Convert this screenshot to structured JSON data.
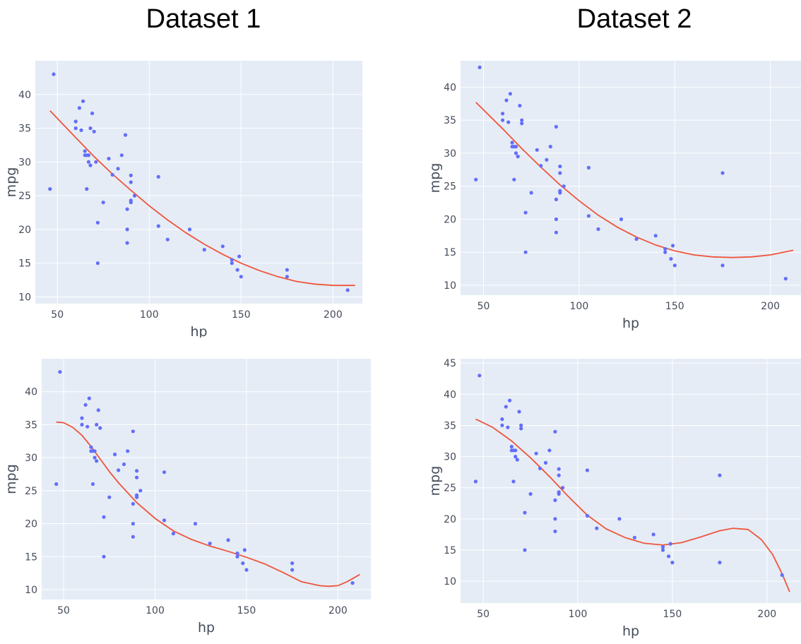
{
  "titles": [
    "Dataset 1",
    "Dataset 2"
  ],
  "colors": {
    "plot_bg": "#E5ECF6",
    "grid": "#FFFFFF",
    "points": "#636EFA",
    "fit": "#EF553B",
    "axis_text": "#444C5A"
  },
  "chart_data": [
    {
      "type": "scatter",
      "dataset": "Dataset 1",
      "xlabel": "hp",
      "ylabel": "mpg",
      "xlim": [
        38,
        216
      ],
      "ylim": [
        9,
        45
      ],
      "xticks": [
        50,
        100,
        150,
        200
      ],
      "yticks": [
        10,
        15,
        20,
        25,
        30,
        35,
        40
      ],
      "grid": true,
      "points": {
        "x": [
          46,
          48,
          60,
          60,
          62,
          63,
          64,
          65,
          65,
          66,
          66,
          67,
          67,
          68,
          68,
          69,
          70,
          71,
          72,
          72,
          75,
          78,
          80,
          83,
          85,
          87,
          88,
          88,
          88,
          90,
          90,
          90,
          90,
          92,
          105,
          105,
          110,
          122,
          130,
          140,
          145,
          145,
          148,
          149,
          150,
          175,
          175,
          208
        ],
        "y": [
          26,
          43,
          36,
          35,
          38,
          34.7,
          39,
          31.6,
          31,
          31,
          26,
          31,
          30,
          29.5,
          35,
          37.2,
          34.5,
          30,
          15,
          21,
          24,
          30.5,
          28.1,
          29,
          31,
          34,
          23,
          20,
          18,
          28,
          27,
          24.3,
          24,
          25,
          27.8,
          20.5,
          18.5,
          20,
          17,
          17.5,
          15.5,
          15,
          14,
          16,
          13,
          14,
          13,
          11
        ]
      },
      "fit": {
        "x": [
          46,
          60,
          70,
          80,
          90,
          100,
          110,
          120,
          130,
          140,
          150,
          160,
          170,
          180,
          190,
          200,
          212
        ],
        "y": [
          37.6,
          33.6,
          30.8,
          28.2,
          25.8,
          23.5,
          21.4,
          19.5,
          17.8,
          16.3,
          15,
          13.9,
          13,
          12.3,
          11.9,
          11.7,
          11.7
        ]
      }
    },
    {
      "type": "scatter",
      "dataset": "Dataset 2",
      "xlabel": "hp",
      "ylabel": "mpg",
      "xlim": [
        38,
        216
      ],
      "ylim": [
        8.5,
        44
      ],
      "xticks": [
        50,
        100,
        150,
        200
      ],
      "yticks": [
        10,
        15,
        20,
        25,
        30,
        35,
        40
      ],
      "grid": true,
      "points": {
        "x": [
          46,
          48,
          60,
          60,
          62,
          63,
          64,
          65,
          65,
          66,
          66,
          67,
          67,
          68,
          69,
          70,
          70,
          72,
          72,
          75,
          78,
          80,
          83,
          85,
          88,
          88,
          88,
          88,
          90,
          90,
          90,
          90,
          92,
          105,
          105,
          110,
          122,
          130,
          140,
          145,
          145,
          148,
          149,
          150,
          175,
          175,
          208
        ],
        "y": [
          26,
          43,
          36,
          35,
          38,
          34.7,
          39,
          31.6,
          31,
          31,
          26,
          31,
          30,
          29.5,
          37.2,
          35,
          34.5,
          15,
          21,
          24,
          30.5,
          28.1,
          29,
          31,
          34,
          23,
          20,
          18,
          28,
          27,
          24.3,
          24,
          25,
          27.8,
          20.5,
          18.5,
          20,
          17,
          17.5,
          15.5,
          15,
          14,
          16,
          13,
          27,
          13,
          11
        ]
      },
      "fit": {
        "x": [
          46,
          60,
          70,
          80,
          90,
          100,
          110,
          120,
          130,
          140,
          150,
          160,
          170,
          180,
          190,
          200,
          212
        ],
        "y": [
          37.7,
          33.7,
          30.7,
          27.9,
          25.2,
          22.8,
          20.6,
          18.8,
          17.3,
          16.1,
          15.2,
          14.6,
          14.3,
          14.2,
          14.3,
          14.6,
          15.3
        ]
      }
    },
    {
      "type": "scatter",
      "dataset": "Dataset 1",
      "xlabel": "hp",
      "ylabel": "mpg",
      "xlim": [
        38,
        218
      ],
      "ylim": [
        8.5,
        45
      ],
      "xticks": [
        50,
        100,
        150,
        200
      ],
      "yticks": [
        10,
        15,
        20,
        25,
        30,
        35,
        40
      ],
      "grid": true,
      "points": {
        "x": [
          46,
          48,
          60,
          60,
          62,
          63,
          64,
          65,
          65,
          66,
          66,
          67,
          67,
          68,
          68,
          69,
          70,
          72,
          72,
          75,
          78,
          80,
          83,
          85,
          88,
          88,
          88,
          88,
          90,
          90,
          90,
          90,
          92,
          105,
          105,
          110,
          122,
          130,
          140,
          145,
          145,
          148,
          149,
          150,
          175,
          175,
          208
        ],
        "y": [
          26,
          43,
          36,
          35,
          38,
          34.7,
          39,
          31.6,
          31,
          31,
          26,
          31,
          30,
          29.5,
          35,
          37.2,
          34.5,
          15,
          21,
          24,
          30.5,
          28.1,
          29,
          31,
          34,
          23,
          20,
          18,
          28,
          27,
          24.3,
          24,
          25,
          27.8,
          20.5,
          18.5,
          20,
          17,
          17.5,
          15.5,
          15,
          14,
          16,
          13,
          14,
          13,
          11
        ]
      },
      "fit": {
        "x": [
          46,
          50,
          55,
          60,
          65,
          70,
          75,
          80,
          90,
          100,
          110,
          120,
          130,
          140,
          150,
          160,
          170,
          180,
          190,
          195,
          200,
          205,
          212
        ],
        "y": [
          35.4,
          35.3,
          34.6,
          33.4,
          31.7,
          29.8,
          27.9,
          26.2,
          23.2,
          20.8,
          18.9,
          17.6,
          16.6,
          15.8,
          14.9,
          13.9,
          12.6,
          11.2,
          10.6,
          10.5,
          10.6,
          11.2,
          12.3
        ]
      }
    },
    {
      "type": "scatter",
      "dataset": "Dataset 2",
      "xlabel": "hp",
      "ylabel": "mpg",
      "xlim": [
        38,
        218
      ],
      "ylim": [
        6.5,
        45.7
      ],
      "xticks": [
        50,
        100,
        150,
        200
      ],
      "yticks": [
        10,
        15,
        20,
        25,
        30,
        35,
        40,
        45
      ],
      "grid": true,
      "points": {
        "x": [
          46,
          48,
          60,
          60,
          62,
          63,
          64,
          65,
          65,
          66,
          66,
          67,
          67,
          68,
          69,
          70,
          70,
          72,
          72,
          75,
          78,
          80,
          83,
          85,
          88,
          88,
          88,
          88,
          90,
          90,
          90,
          90,
          92,
          105,
          105,
          110,
          122,
          130,
          140,
          145,
          145,
          148,
          149,
          150,
          175,
          175,
          208
        ],
        "y": [
          26,
          43,
          36,
          35,
          38,
          34.7,
          39,
          31.6,
          31,
          31,
          26,
          31,
          30,
          29.5,
          37.2,
          35,
          34.5,
          15,
          21,
          24,
          30.5,
          28.1,
          29,
          31,
          34,
          23,
          20,
          18,
          28,
          27,
          24.3,
          24,
          25,
          27.8,
          20.5,
          18.5,
          20,
          17,
          17.5,
          15.5,
          15,
          14,
          16,
          13,
          27,
          13,
          11
        ]
      },
      "fit": {
        "x": [
          46,
          55,
          65,
          75,
          85,
          95,
          105,
          115,
          125,
          135,
          145,
          155,
          165,
          175,
          182,
          190,
          197,
          203,
          208,
          212
        ],
        "y": [
          36,
          34.7,
          32.5,
          29.8,
          26.8,
          23.6,
          20.6,
          18.4,
          17,
          16.1,
          15.8,
          16.2,
          17.1,
          18.1,
          18.5,
          18.3,
          16.7,
          14.3,
          11.2,
          8.3
        ]
      }
    }
  ]
}
